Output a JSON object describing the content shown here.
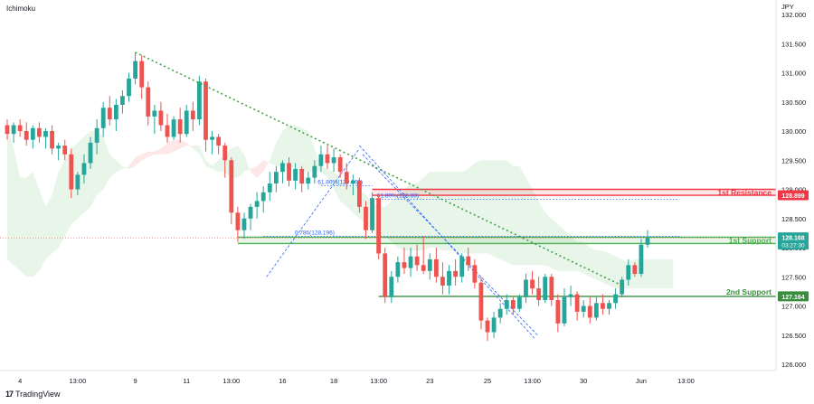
{
  "chart_data": {
    "type": "candlestick",
    "indicator_label": "Ichimoku",
    "currency": "JPY",
    "price_ticks": [
      "132.000",
      "131.500",
      "131.000",
      "130.500",
      "130.000",
      "129.500",
      "129.000",
      "128.500",
      "128.000",
      "127.500",
      "127.000",
      "126.500",
      "126.000"
    ],
    "date_ticks": [
      {
        "label": "4",
        "bar": 2
      },
      {
        "label": "13:00",
        "bar": 11
      },
      {
        "label": "9",
        "bar": 20
      },
      {
        "label": "11",
        "bar": 28
      },
      {
        "label": "13:00",
        "bar": 35
      },
      {
        "label": "16",
        "bar": 43
      },
      {
        "label": "18",
        "bar": 51
      },
      {
        "label": "13:00",
        "bar": 58
      },
      {
        "label": "23",
        "bar": 66
      },
      {
        "label": "25",
        "bar": 75
      },
      {
        "label": "13:00",
        "bar": 82
      },
      {
        "label": "30",
        "bar": 90
      },
      {
        "label": "Jun",
        "bar": 99
      },
      {
        "label": "13:00",
        "bar": 106
      }
    ],
    "ohlc": [
      [
        130.1,
        130.2,
        129.85,
        129.95
      ],
      [
        129.95,
        130.15,
        129.8,
        130.1
      ],
      [
        130.1,
        130.2,
        129.9,
        130.0
      ],
      [
        130.0,
        130.15,
        129.75,
        129.85
      ],
      [
        129.85,
        130.1,
        129.7,
        130.05
      ],
      [
        130.05,
        130.15,
        129.8,
        129.9
      ],
      [
        129.9,
        130.05,
        129.7,
        130.0
      ],
      [
        130.0,
        130.1,
        129.6,
        129.7
      ],
      [
        129.7,
        129.8,
        129.5,
        129.75
      ],
      [
        129.75,
        129.85,
        129.5,
        129.6
      ],
      [
        129.6,
        129.7,
        128.85,
        129.0
      ],
      [
        129.0,
        129.3,
        128.9,
        129.25
      ],
      [
        129.25,
        129.6,
        129.1,
        129.45
      ],
      [
        129.45,
        129.9,
        129.35,
        129.8
      ],
      [
        129.8,
        130.2,
        129.6,
        130.05
      ],
      [
        130.05,
        130.5,
        129.9,
        130.4
      ],
      [
        130.4,
        130.6,
        130.1,
        130.2
      ],
      [
        130.2,
        130.55,
        130.0,
        130.45
      ],
      [
        130.45,
        130.7,
        130.3,
        130.6
      ],
      [
        130.6,
        131.0,
        130.5,
        130.9
      ],
      [
        130.9,
        131.35,
        130.8,
        131.2
      ],
      [
        131.2,
        131.3,
        130.55,
        130.75
      ],
      [
        130.75,
        130.85,
        130.1,
        130.25
      ],
      [
        130.25,
        130.45,
        129.95,
        130.35
      ],
      [
        130.35,
        130.5,
        130.0,
        130.1
      ],
      [
        130.1,
        130.3,
        129.8,
        129.9
      ],
      [
        129.9,
        130.25,
        129.85,
        130.2
      ],
      [
        130.2,
        130.4,
        129.8,
        129.95
      ],
      [
        129.95,
        130.45,
        129.9,
        130.35
      ],
      [
        130.35,
        130.5,
        130.0,
        130.2
      ],
      [
        130.2,
        130.95,
        130.1,
        130.85
      ],
      [
        130.85,
        130.9,
        129.65,
        129.85
      ],
      [
        129.85,
        130.0,
        129.6,
        129.9
      ],
      [
        129.9,
        129.95,
        129.6,
        129.75
      ],
      [
        129.75,
        129.8,
        129.2,
        129.5
      ],
      [
        129.5,
        129.55,
        128.4,
        128.6
      ],
      [
        128.6,
        128.7,
        128.1,
        128.3
      ],
      [
        128.3,
        128.6,
        128.15,
        128.5
      ],
      [
        128.5,
        128.75,
        128.3,
        128.7
      ],
      [
        128.7,
        128.95,
        128.5,
        128.8
      ],
      [
        128.8,
        129.05,
        128.6,
        128.95
      ],
      [
        128.95,
        129.3,
        128.8,
        129.1
      ],
      [
        129.1,
        129.4,
        128.95,
        129.3
      ],
      [
        129.3,
        129.5,
        129.1,
        129.45
      ],
      [
        129.45,
        129.55,
        129.05,
        129.15
      ],
      [
        129.15,
        129.45,
        129.0,
        129.35
      ],
      [
        129.35,
        129.4,
        128.95,
        129.1
      ],
      [
        129.1,
        129.3,
        129.0,
        129.2
      ],
      [
        129.2,
        129.5,
        129.1,
        129.4
      ],
      [
        129.4,
        129.75,
        129.3,
        129.6
      ],
      [
        129.6,
        129.75,
        129.35,
        129.45
      ],
      [
        129.45,
        129.7,
        129.3,
        129.55
      ],
      [
        129.55,
        129.6,
        129.2,
        129.3
      ],
      [
        129.3,
        129.45,
        129.0,
        129.1
      ],
      [
        129.1,
        129.25,
        128.9,
        129.15
      ],
      [
        129.15,
        129.2,
        128.6,
        128.7
      ],
      [
        128.7,
        128.8,
        128.15,
        128.3
      ],
      [
        128.3,
        128.95,
        128.25,
        128.85
      ],
      [
        128.85,
        128.9,
        127.8,
        127.9
      ],
      [
        127.9,
        128.0,
        127.05,
        127.15
      ],
      [
        127.15,
        127.6,
        127.05,
        127.5
      ],
      [
        127.5,
        127.85,
        127.4,
        127.75
      ],
      [
        127.75,
        128.0,
        127.55,
        127.65
      ],
      [
        127.65,
        128.0,
        127.5,
        127.85
      ],
      [
        127.85,
        128.05,
        127.6,
        127.7
      ],
      [
        127.7,
        128.2,
        127.55,
        127.6
      ],
      [
        127.6,
        127.9,
        127.45,
        127.8
      ],
      [
        127.8,
        128.0,
        127.4,
        127.5
      ],
      [
        127.5,
        127.75,
        127.2,
        127.35
      ],
      [
        127.35,
        127.7,
        127.2,
        127.6
      ],
      [
        127.6,
        127.8,
        127.35,
        127.5
      ],
      [
        127.5,
        127.9,
        127.4,
        127.85
      ],
      [
        127.85,
        128.0,
        127.6,
        127.7
      ],
      [
        127.7,
        127.8,
        127.3,
        127.4
      ],
      [
        127.4,
        127.5,
        126.6,
        126.75
      ],
      [
        126.75,
        126.8,
        126.4,
        126.55
      ],
      [
        126.55,
        126.9,
        126.45,
        126.8
      ],
      [
        126.8,
        127.05,
        126.7,
        126.95
      ],
      [
        126.95,
        127.2,
        126.85,
        127.1
      ],
      [
        127.1,
        127.15,
        126.85,
        126.95
      ],
      [
        126.95,
        127.2,
        126.9,
        127.15
      ],
      [
        127.15,
        127.55,
        127.05,
        127.45
      ],
      [
        127.45,
        127.6,
        127.2,
        127.3
      ],
      [
        127.3,
        127.5,
        127.0,
        127.1
      ],
      [
        127.1,
        127.55,
        127.05,
        127.5
      ],
      [
        127.5,
        127.55,
        127.0,
        127.1
      ],
      [
        127.1,
        127.2,
        126.55,
        126.7
      ],
      [
        126.7,
        127.3,
        126.65,
        127.15
      ],
      [
        127.15,
        127.35,
        127.0,
        127.2
      ],
      [
        127.2,
        127.25,
        126.75,
        126.9
      ],
      [
        126.9,
        127.1,
        126.8,
        127.0
      ],
      [
        127.0,
        127.15,
        126.7,
        126.8
      ],
      [
        126.8,
        127.15,
        126.75,
        127.05
      ],
      [
        127.05,
        127.2,
        126.85,
        126.95
      ],
      [
        126.95,
        127.1,
        126.85,
        127.05
      ],
      [
        127.05,
        127.3,
        126.95,
        127.2
      ],
      [
        127.2,
        127.5,
        127.15,
        127.45
      ],
      [
        127.45,
        127.8,
        127.35,
        127.7
      ],
      [
        127.7,
        127.75,
        127.5,
        127.55
      ],
      [
        127.55,
        128.15,
        127.5,
        128.05
      ],
      [
        128.05,
        128.3,
        128.0,
        128.17
      ]
    ],
    "cloud": [
      [
        130.05,
        127.8
      ],
      [
        129.7,
        127.7
      ],
      [
        129.2,
        127.6
      ],
      [
        129.2,
        127.5
      ],
      [
        129.3,
        127.5
      ],
      [
        129.0,
        127.6
      ],
      [
        128.7,
        127.8
      ],
      [
        128.9,
        127.9
      ],
      [
        129.3,
        128.0
      ],
      [
        129.5,
        128.2
      ],
      [
        129.7,
        128.4
      ],
      [
        129.8,
        128.5
      ],
      [
        129.9,
        128.6
      ],
      [
        130.0,
        128.7
      ],
      [
        130.0,
        128.9
      ],
      [
        129.9,
        129.0
      ],
      [
        129.6,
        129.2
      ],
      [
        129.5,
        129.3
      ],
      [
        129.4,
        129.35
      ],
      [
        129.35,
        129.4
      ],
      [
        129.4,
        129.55
      ],
      [
        129.5,
        129.6
      ],
      [
        129.55,
        129.65
      ],
      [
        129.6,
        129.65
      ],
      [
        129.6,
        129.7
      ],
      [
        129.6,
        129.8
      ],
      [
        129.65,
        129.85
      ],
      [
        129.7,
        129.85
      ],
      [
        129.75,
        129.8
      ],
      [
        129.75,
        129.7
      ],
      [
        129.75,
        129.6
      ],
      [
        129.5,
        129.4
      ],
      [
        129.4,
        129.35
      ],
      [
        129.5,
        129.3
      ],
      [
        129.6,
        129.3
      ],
      [
        129.7,
        129.2
      ],
      [
        129.75,
        129.2
      ],
      [
        129.6,
        129.3
      ],
      [
        129.3,
        129.35
      ],
      [
        129.2,
        129.4
      ],
      [
        129.3,
        129.5
      ],
      [
        129.5,
        129.45
      ],
      [
        129.8,
        129.4
      ],
      [
        130.0,
        129.4
      ],
      [
        130.1,
        129.4
      ],
      [
        130.1,
        129.35
      ],
      [
        130.05,
        129.3
      ],
      [
        130.0,
        129.3
      ],
      [
        129.7,
        129.3
      ],
      [
        129.4,
        129.3
      ],
      [
        129.35,
        129.2
      ],
      [
        129.3,
        129.0
      ],
      [
        129.2,
        128.8
      ],
      [
        129.1,
        128.7
      ],
      [
        129.05,
        128.6
      ],
      [
        129.0,
        128.5
      ],
      [
        128.9,
        128.4
      ],
      [
        128.8,
        128.3
      ],
      [
        128.7,
        128.2
      ],
      [
        128.7,
        128.2
      ],
      [
        128.8,
        128.1
      ],
      [
        128.9,
        128.0
      ],
      [
        129.0,
        127.95
      ],
      [
        129.1,
        127.95
      ],
      [
        129.1,
        127.95
      ],
      [
        129.2,
        127.95
      ],
      [
        129.3,
        128.0
      ],
      [
        129.3,
        128.0
      ],
      [
        129.3,
        127.95
      ],
      [
        129.3,
        127.95
      ],
      [
        129.3,
        127.95
      ],
      [
        129.3,
        127.9
      ],
      [
        129.35,
        127.9
      ],
      [
        129.45,
        127.9
      ],
      [
        129.5,
        127.9
      ],
      [
        129.5,
        127.9
      ],
      [
        129.5,
        127.85
      ],
      [
        129.5,
        127.8
      ],
      [
        129.5,
        127.75
      ],
      [
        129.4,
        127.7
      ],
      [
        129.4,
        127.7
      ],
      [
        129.2,
        127.7
      ],
      [
        129.0,
        127.7
      ],
      [
        128.8,
        127.7
      ],
      [
        128.6,
        127.7
      ],
      [
        128.5,
        127.65
      ],
      [
        128.4,
        127.6
      ],
      [
        128.3,
        127.6
      ],
      [
        128.2,
        127.6
      ],
      [
        128.1,
        127.6
      ],
      [
        128.1,
        127.55
      ],
      [
        128.0,
        127.5
      ],
      [
        127.95,
        127.45
      ],
      [
        127.95,
        127.4
      ],
      [
        127.9,
        127.35
      ],
      [
        127.85,
        127.3
      ],
      [
        127.8,
        127.3
      ],
      [
        127.75,
        127.3
      ],
      [
        127.8,
        127.3
      ],
      [
        127.8,
        127.3
      ],
      [
        127.8,
        127.3
      ],
      [
        127.8,
        127.3
      ],
      [
        127.8,
        127.3
      ],
      [
        127.8,
        127.3
      ],
      [
        127.8,
        127.3
      ]
    ],
    "levels": [
      {
        "name": "1st Resistance",
        "price": 128.899,
        "price_label": "128.899",
        "band_top": 129.0,
        "from_bar": 57,
        "color": "#f23645"
      },
      {
        "name": "1st Support",
        "price": 128.07,
        "price_label": "128.070",
        "band_top": 128.18,
        "from_bar": 36,
        "color": "#4caf50"
      },
      {
        "name": "2nd Support",
        "price": 127.164,
        "price_label": "127.164",
        "band_top": null,
        "from_bar": 58,
        "color": "#388e3c"
      }
    ],
    "current": {
      "price": 128.168,
      "price_label": "128.168",
      "countdown": "03:27:30"
    },
    "trendline": {
      "from": [
        20,
        131.35
      ],
      "to": [
        96,
        127.35
      ]
    },
    "fib_labels": [
      {
        "text": "0.786(128.196)",
        "price": 128.196
      },
      {
        "text": "61.80%(128.83)",
        "price": 128.83
      },
      {
        "text": "61.80%(129.062)",
        "price": 129.062
      }
    ]
  }
}
